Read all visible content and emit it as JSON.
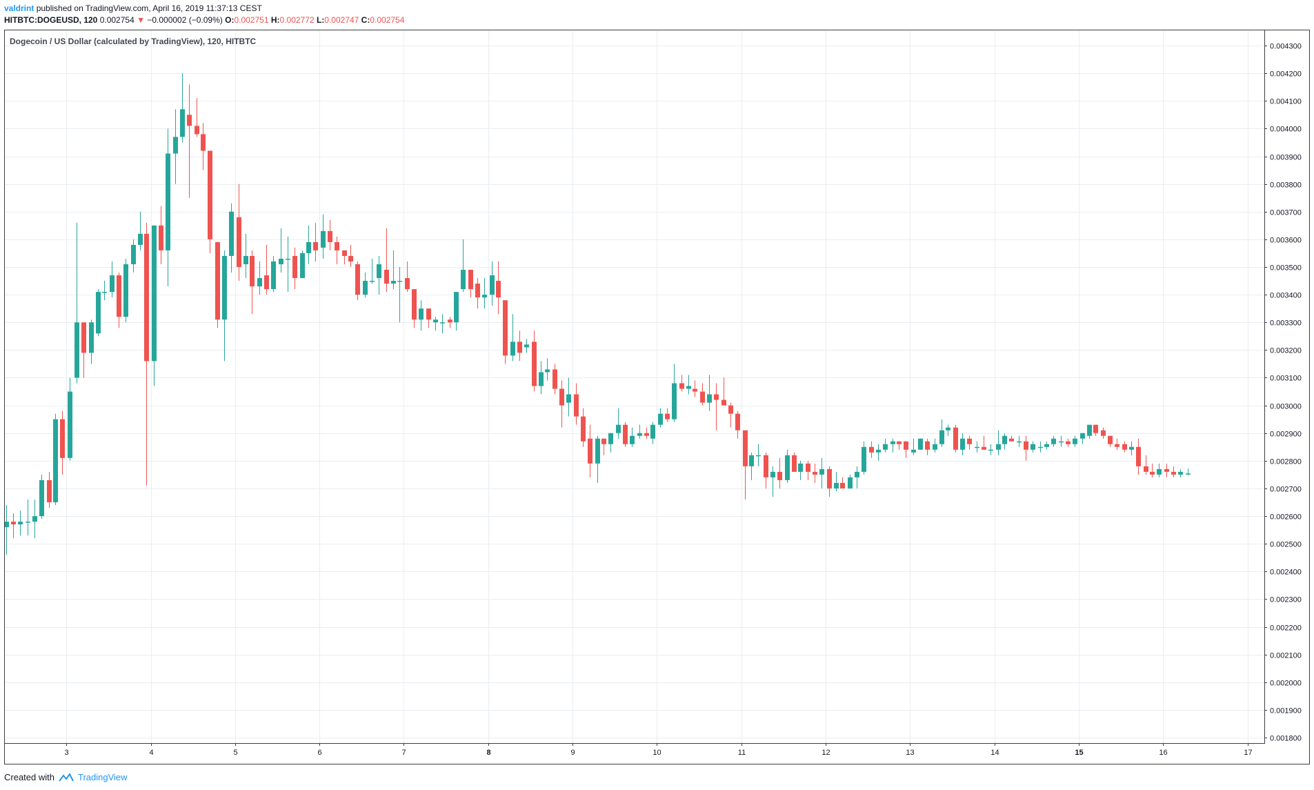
{
  "header": {
    "user": "valdrint",
    "published_text": "published on TradingView.com, April 16, 2019 11:37:13 CEST"
  },
  "quote": {
    "symbol": "HITBTC:DOGEUSD, 120",
    "last": "0.002754",
    "change": "−0.000002 (−0.09%)",
    "open_label": "O:",
    "open": "0.002751",
    "high_label": "H:",
    "high": "0.002772",
    "low_label": "L:",
    "low": "0.002747",
    "close_label": "C:",
    "close": "0.002754"
  },
  "footer": {
    "created_with": "Created with",
    "brand": "TradingView"
  },
  "chart_data": {
    "type": "candlestick",
    "title": "Dogecoin / US Dollar (calculated by TradingView), 120, HITBTC",
    "colors": {
      "up": "#26a69a",
      "down": "#ef5350",
      "grid": "#e9eef2",
      "axis": "#3c3c3c"
    },
    "x_ticks": [
      {
        "label": "3",
        "x": 3,
        "bold": false
      },
      {
        "label": "4",
        "x": 4,
        "bold": false
      },
      {
        "label": "5",
        "x": 5,
        "bold": false
      },
      {
        "label": "6",
        "x": 6,
        "bold": false
      },
      {
        "label": "7",
        "x": 7,
        "bold": false
      },
      {
        "label": "8",
        "x": 8,
        "bold": true
      },
      {
        "label": "9",
        "x": 9,
        "bold": false
      },
      {
        "label": "10",
        "x": 10,
        "bold": false
      },
      {
        "label": "11",
        "x": 11,
        "bold": false
      },
      {
        "label": "12",
        "x": 12,
        "bold": false
      },
      {
        "label": "13",
        "x": 13,
        "bold": false
      },
      {
        "label": "14",
        "x": 14,
        "bold": false
      },
      {
        "label": "15",
        "x": 15,
        "bold": true
      },
      {
        "label": "16",
        "x": 16,
        "bold": false
      },
      {
        "label": "17",
        "x": 17,
        "bold": false
      }
    ],
    "y_ticks": [
      "0.001800",
      "0.001900",
      "0.002000",
      "0.002100",
      "0.002200",
      "0.002300",
      "0.002400",
      "0.002500",
      "0.002600",
      "0.002700",
      "0.002800",
      "0.002900",
      "0.003000",
      "0.003100",
      "0.003200",
      "0.003300",
      "0.003400",
      "0.003500",
      "0.003600",
      "0.003700",
      "0.003800",
      "0.003900",
      "0.004000",
      "0.004100",
      "0.004200",
      "0.004300"
    ],
    "ylim": [
      0.00178,
      0.004355
    ],
    "xlim": [
      2.27,
      17.2
    ],
    "candles": [
      [
        2.29,
        0.00256,
        0.00264,
        0.00246,
        0.00258
      ],
      [
        2.37,
        0.00258,
        0.00261,
        0.00252,
        0.00257
      ],
      [
        2.45,
        0.00257,
        0.00262,
        0.00253,
        0.00258
      ],
      [
        2.54,
        0.00258,
        0.00266,
        0.00253,
        0.00258
      ],
      [
        2.62,
        0.00258,
        0.00266,
        0.00252,
        0.0026
      ],
      [
        2.7,
        0.0026,
        0.00275,
        0.00259,
        0.00273
      ],
      [
        2.79,
        0.00273,
        0.00276,
        0.00263,
        0.00265
      ],
      [
        2.87,
        0.00265,
        0.00297,
        0.00264,
        0.00295
      ],
      [
        2.95,
        0.00295,
        0.00298,
        0.00275,
        0.00281
      ],
      [
        3.04,
        0.00281,
        0.0031,
        0.0028,
        0.00305
      ],
      [
        3.12,
        0.0031,
        0.00366,
        0.00308,
        0.0033
      ],
      [
        3.2,
        0.0033,
        0.0033,
        0.0031,
        0.00319
      ],
      [
        3.29,
        0.00319,
        0.00331,
        0.00315,
        0.0033
      ],
      [
        3.37,
        0.00326,
        0.00342,
        0.00325,
        0.00341
      ],
      [
        3.45,
        0.00341,
        0.00345,
        0.00338,
        0.00341
      ],
      [
        3.54,
        0.00341,
        0.00352,
        0.00339,
        0.00347
      ],
      [
        3.62,
        0.00347,
        0.00348,
        0.00328,
        0.00332
      ],
      [
        3.7,
        0.00332,
        0.00353,
        0.0033,
        0.00351
      ],
      [
        3.79,
        0.00351,
        0.0036,
        0.00348,
        0.00358
      ],
      [
        3.87,
        0.00358,
        0.0037,
        0.00356,
        0.00362
      ],
      [
        3.95,
        0.00362,
        0.00366,
        0.00271,
        0.00316
      ],
      [
        4.04,
        0.00316,
        0.00365,
        0.00307,
        0.00365
      ],
      [
        4.12,
        0.00365,
        0.00372,
        0.00351,
        0.00356
      ],
      [
        4.2,
        0.00356,
        0.004,
        0.00343,
        0.00391
      ],
      [
        4.29,
        0.00391,
        0.00407,
        0.0038,
        0.00397
      ],
      [
        4.37,
        0.00397,
        0.0042,
        0.00395,
        0.00407
      ],
      [
        4.45,
        0.00405,
        0.00416,
        0.00375,
        0.00401
      ],
      [
        4.54,
        0.00401,
        0.00411,
        0.00397,
        0.00398
      ],
      [
        4.62,
        0.00398,
        0.00402,
        0.00385,
        0.00392
      ],
      [
        4.7,
        0.00392,
        0.00392,
        0.00355,
        0.0036
      ],
      [
        4.79,
        0.00359,
        0.00359,
        0.00328,
        0.00331
      ],
      [
        4.87,
        0.00331,
        0.00356,
        0.00316,
        0.00354
      ],
      [
        4.95,
        0.00354,
        0.00373,
        0.00348,
        0.0037
      ],
      [
        5.04,
        0.00368,
        0.0038,
        0.00345,
        0.0035
      ],
      [
        5.12,
        0.00351,
        0.00362,
        0.00346,
        0.00354
      ],
      [
        5.2,
        0.00354,
        0.00356,
        0.00333,
        0.00343
      ],
      [
        5.29,
        0.00343,
        0.00352,
        0.0034,
        0.00346
      ],
      [
        5.37,
        0.00347,
        0.00358,
        0.0034,
        0.00342
      ],
      [
        5.45,
        0.00342,
        0.00354,
        0.00341,
        0.00352
      ],
      [
        5.54,
        0.00351,
        0.00364,
        0.00348,
        0.00353
      ],
      [
        5.62,
        0.00353,
        0.00361,
        0.00341,
        0.00353
      ],
      [
        5.7,
        0.00354,
        0.00357,
        0.00342,
        0.00346
      ],
      [
        5.79,
        0.00346,
        0.00356,
        0.00346,
        0.00355
      ],
      [
        5.87,
        0.00355,
        0.00365,
        0.00351,
        0.00359
      ],
      [
        5.95,
        0.00359,
        0.00366,
        0.00352,
        0.00356
      ],
      [
        6.04,
        0.00357,
        0.00369,
        0.00353,
        0.00363
      ],
      [
        6.12,
        0.00363,
        0.00367,
        0.00356,
        0.00359
      ],
      [
        6.2,
        0.00359,
        0.00361,
        0.00351,
        0.00356
      ],
      [
        6.29,
        0.00356,
        0.00356,
        0.00351,
        0.00354
      ],
      [
        6.37,
        0.00354,
        0.00358,
        0.0035,
        0.00352
      ],
      [
        6.45,
        0.00351,
        0.00352,
        0.00338,
        0.0034
      ],
      [
        6.54,
        0.0034,
        0.00348,
        0.00339,
        0.00345
      ],
      [
        6.62,
        0.00345,
        0.00353,
        0.00344,
        0.00345
      ],
      [
        6.7,
        0.00346,
        0.00354,
        0.0034,
        0.00351
      ],
      [
        6.79,
        0.00349,
        0.00364,
        0.00341,
        0.00344
      ],
      [
        6.87,
        0.00344,
        0.00356,
        0.00342,
        0.00345
      ],
      [
        6.95,
        0.00345,
        0.0035,
        0.0033,
        0.00345
      ],
      [
        7.04,
        0.00346,
        0.00352,
        0.00341,
        0.00342
      ],
      [
        7.12,
        0.00342,
        0.00342,
        0.00328,
        0.00331
      ],
      [
        7.2,
        0.00331,
        0.00338,
        0.00327,
        0.00335
      ],
      [
        7.29,
        0.00335,
        0.00335,
        0.00328,
        0.00331
      ],
      [
        7.37,
        0.0033,
        0.00332,
        0.00327,
        0.00331
      ],
      [
        7.45,
        0.0033,
        0.00333,
        0.00326,
        0.0033
      ],
      [
        7.54,
        0.00331,
        0.00332,
        0.00328,
        0.0033
      ],
      [
        7.62,
        0.0033,
        0.0034,
        0.00327,
        0.00341
      ],
      [
        7.7,
        0.00342,
        0.0036,
        0.00341,
        0.00349
      ],
      [
        7.79,
        0.00349,
        0.00349,
        0.00339,
        0.00342
      ],
      [
        7.87,
        0.00344,
        0.00346,
        0.00335,
        0.00339
      ],
      [
        7.95,
        0.00339,
        0.00346,
        0.00335,
        0.0034
      ],
      [
        8.04,
        0.0034,
        0.00352,
        0.00336,
        0.00347
      ],
      [
        8.12,
        0.00345,
        0.00352,
        0.00333,
        0.00339
      ],
      [
        8.2,
        0.00338,
        0.00338,
        0.00315,
        0.00318
      ],
      [
        8.29,
        0.00318,
        0.00333,
        0.00316,
        0.00323
      ],
      [
        8.37,
        0.00323,
        0.00327,
        0.00316,
        0.00319
      ],
      [
        8.45,
        0.00321,
        0.00324,
        0.00319,
        0.00322
      ],
      [
        8.54,
        0.00323,
        0.00327,
        0.00305,
        0.00307
      ],
      [
        8.62,
        0.00307,
        0.00316,
        0.00304,
        0.00312
      ],
      [
        8.7,
        0.00312,
        0.00317,
        0.00309,
        0.00313
      ],
      [
        8.79,
        0.00313,
        0.00315,
        0.00304,
        0.00306
      ],
      [
        8.87,
        0.00306,
        0.00309,
        0.00292,
        0.003
      ],
      [
        8.95,
        0.00301,
        0.0031,
        0.00296,
        0.00304
      ],
      [
        9.04,
        0.00304,
        0.00308,
        0.00293,
        0.00296
      ],
      [
        9.12,
        0.00296,
        0.00299,
        0.00285,
        0.00287
      ],
      [
        9.2,
        0.00288,
        0.00293,
        0.00274,
        0.00279
      ],
      [
        9.29,
        0.00279,
        0.00289,
        0.00272,
        0.00288
      ],
      [
        9.37,
        0.00288,
        0.00288,
        0.00282,
        0.00286
      ],
      [
        9.45,
        0.00286,
        0.0029,
        0.00283,
        0.0029
      ],
      [
        9.54,
        0.0029,
        0.00299,
        0.00288,
        0.00293
      ],
      [
        9.62,
        0.00293,
        0.00294,
        0.00285,
        0.00286
      ],
      [
        9.7,
        0.00286,
        0.00292,
        0.00285,
        0.00289
      ],
      [
        9.79,
        0.00289,
        0.00293,
        0.00288,
        0.0029
      ],
      [
        9.87,
        0.0029,
        0.00292,
        0.00288,
        0.00289
      ],
      [
        9.95,
        0.00288,
        0.00294,
        0.00286,
        0.00293
      ],
      [
        10.04,
        0.00293,
        0.00299,
        0.00292,
        0.00297
      ],
      [
        10.12,
        0.00297,
        0.00299,
        0.00294,
        0.00295
      ],
      [
        10.2,
        0.00295,
        0.00315,
        0.00294,
        0.00308
      ],
      [
        10.29,
        0.00308,
        0.00311,
        0.00305,
        0.00306
      ],
      [
        10.37,
        0.00306,
        0.00311,
        0.00304,
        0.00307
      ],
      [
        10.45,
        0.00306,
        0.00309,
        0.00303,
        0.00305
      ],
      [
        10.54,
        0.00305,
        0.00308,
        0.003,
        0.00301
      ],
      [
        10.62,
        0.00301,
        0.00311,
        0.00298,
        0.00304
      ],
      [
        10.7,
        0.00304,
        0.00308,
        0.00291,
        0.00302
      ],
      [
        10.79,
        0.00302,
        0.0031,
        0.00301,
        0.003
      ],
      [
        10.87,
        0.003,
        0.00301,
        0.00292,
        0.00297
      ],
      [
        10.95,
        0.00297,
        0.00298,
        0.00288,
        0.00291
      ],
      [
        11.04,
        0.00291,
        0.00291,
        0.00266,
        0.00278
      ],
      [
        11.12,
        0.00278,
        0.00283,
        0.00273,
        0.00282
      ],
      [
        11.2,
        0.00282,
        0.00286,
        0.00278,
        0.00282
      ],
      [
        11.29,
        0.00282,
        0.00283,
        0.0027,
        0.00274
      ],
      [
        11.37,
        0.00274,
        0.00278,
        0.00267,
        0.00276
      ],
      [
        11.45,
        0.00276,
        0.00281,
        0.0027,
        0.00273
      ],
      [
        11.54,
        0.00273,
        0.00284,
        0.00272,
        0.00282
      ],
      [
        11.62,
        0.00282,
        0.00283,
        0.00276,
        0.00276
      ],
      [
        11.7,
        0.00276,
        0.0028,
        0.00273,
        0.00279
      ],
      [
        11.79,
        0.00279,
        0.0028,
        0.00273,
        0.00276
      ],
      [
        11.87,
        0.00276,
        0.00279,
        0.00272,
        0.00275
      ],
      [
        11.95,
        0.00275,
        0.00281,
        0.0027,
        0.00277
      ],
      [
        12.04,
        0.00277,
        0.00278,
        0.00267,
        0.0027
      ],
      [
        12.12,
        0.0027,
        0.00276,
        0.00269,
        0.00272
      ],
      [
        12.2,
        0.00272,
        0.00274,
        0.0027,
        0.0027
      ],
      [
        12.29,
        0.0027,
        0.00275,
        0.0027,
        0.00274
      ],
      [
        12.37,
        0.00274,
        0.00278,
        0.0027,
        0.00276
      ],
      [
        12.45,
        0.00276,
        0.00287,
        0.00275,
        0.00285
      ],
      [
        12.54,
        0.00285,
        0.00287,
        0.00281,
        0.00283
      ],
      [
        12.62,
        0.00283,
        0.00286,
        0.0028,
        0.00284
      ],
      [
        12.7,
        0.00284,
        0.00288,
        0.00283,
        0.00286
      ],
      [
        12.79,
        0.00286,
        0.00288,
        0.00283,
        0.00287
      ],
      [
        12.87,
        0.00287,
        0.00287,
        0.00284,
        0.00286
      ],
      [
        12.95,
        0.00287,
        0.00287,
        0.00281,
        0.00284
      ],
      [
        13.04,
        0.00283,
        0.00288,
        0.00282,
        0.00284
      ],
      [
        13.12,
        0.00284,
        0.00288,
        0.00284,
        0.00288
      ],
      [
        13.2,
        0.00287,
        0.00288,
        0.00282,
        0.00284
      ],
      [
        13.29,
        0.00284,
        0.00288,
        0.00283,
        0.00286
      ],
      [
        13.37,
        0.00286,
        0.00295,
        0.00285,
        0.00291
      ],
      [
        13.45,
        0.00291,
        0.00293,
        0.00289,
        0.00292
      ],
      [
        13.54,
        0.00292,
        0.00293,
        0.00283,
        0.00284
      ],
      [
        13.62,
        0.00284,
        0.0029,
        0.00282,
        0.00288
      ],
      [
        13.7,
        0.00288,
        0.00289,
        0.00284,
        0.00286
      ],
      [
        13.79,
        0.00285,
        0.00287,
        0.00283,
        0.00285
      ],
      [
        13.87,
        0.00285,
        0.00289,
        0.00284,
        0.00284
      ],
      [
        13.95,
        0.00284,
        0.00286,
        0.00282,
        0.00284
      ],
      [
        14.04,
        0.00284,
        0.00291,
        0.00282,
        0.00286
      ],
      [
        14.12,
        0.00286,
        0.0029,
        0.00284,
        0.00289
      ],
      [
        14.2,
        0.00288,
        0.00289,
        0.00287,
        0.00287
      ],
      [
        14.29,
        0.00287,
        0.00289,
        0.00285,
        0.00287
      ],
      [
        14.37,
        0.00287,
        0.00289,
        0.0028,
        0.00284
      ],
      [
        14.45,
        0.00284,
        0.00287,
        0.00283,
        0.00286
      ],
      [
        14.54,
        0.00285,
        0.00287,
        0.00283,
        0.00285
      ],
      [
        14.62,
        0.00285,
        0.00287,
        0.00284,
        0.00286
      ],
      [
        14.7,
        0.00286,
        0.00289,
        0.00285,
        0.00288
      ],
      [
        14.79,
        0.00287,
        0.00289,
        0.00285,
        0.00287
      ],
      [
        14.87,
        0.00287,
        0.00288,
        0.00285,
        0.00286
      ],
      [
        14.95,
        0.00286,
        0.00289,
        0.00285,
        0.00288
      ],
      [
        15.04,
        0.00288,
        0.0029,
        0.00286,
        0.0029
      ],
      [
        15.12,
        0.00289,
        0.00293,
        0.00288,
        0.00293
      ],
      [
        15.2,
        0.00293,
        0.00292,
        0.00289,
        0.0029
      ],
      [
        15.29,
        0.00291,
        0.00292,
        0.00288,
        0.00289
      ],
      [
        15.37,
        0.00289,
        0.00289,
        0.00285,
        0.00286
      ],
      [
        15.45,
        0.00286,
        0.00288,
        0.00284,
        0.00285
      ],
      [
        15.54,
        0.00286,
        0.00287,
        0.00283,
        0.00284
      ],
      [
        15.62,
        0.00284,
        0.00287,
        0.00282,
        0.00285
      ],
      [
        15.7,
        0.00285,
        0.00288,
        0.00275,
        0.00278
      ],
      [
        15.79,
        0.00278,
        0.00282,
        0.00275,
        0.00276
      ],
      [
        15.87,
        0.00276,
        0.00279,
        0.00274,
        0.00275
      ],
      [
        15.95,
        0.00275,
        0.00279,
        0.00274,
        0.00277
      ],
      [
        16.04,
        0.00277,
        0.00279,
        0.00274,
        0.00276
      ],
      [
        16.12,
        0.00276,
        0.00278,
        0.00274,
        0.00275
      ],
      [
        16.2,
        0.00275,
        0.00277,
        0.00274,
        0.00276
      ],
      [
        16.29,
        0.002751,
        0.002772,
        0.002747,
        0.002754
      ]
    ]
  }
}
